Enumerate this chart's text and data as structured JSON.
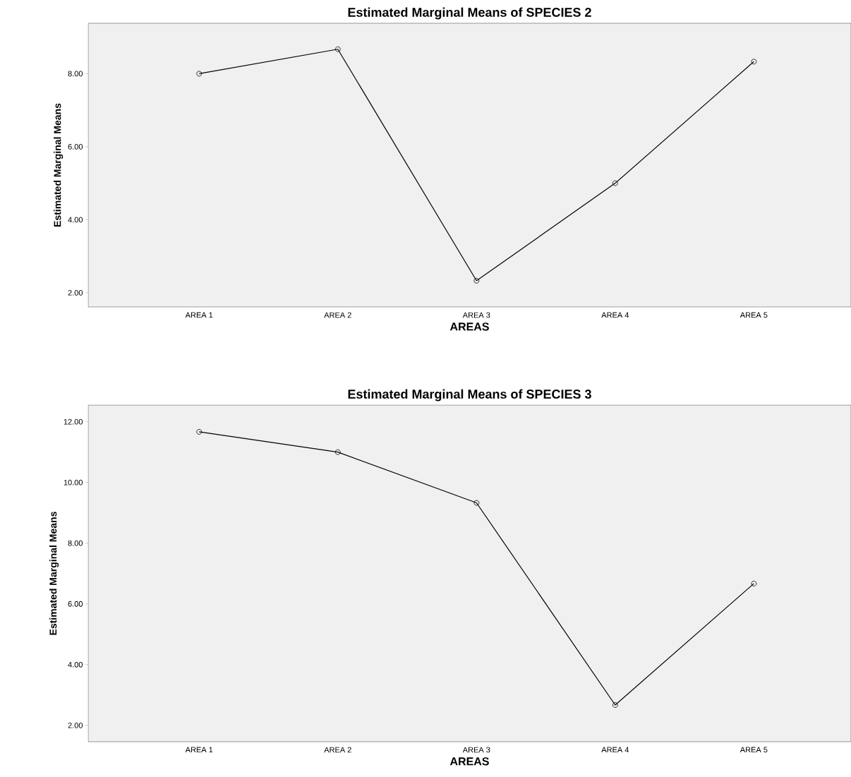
{
  "chart_data": [
    {
      "type": "line",
      "title": "Estimated Marginal Means of SPECIES 2",
      "xlabel": "AREAS",
      "ylabel": "Estimated Marginal Means",
      "categories": [
        "AREA 1",
        "AREA 2",
        "AREA 3",
        "AREA 4",
        "AREA 5"
      ],
      "values": [
        8.0,
        8.67,
        2.33,
        5.0,
        8.33
      ],
      "color": "#000000",
      "marker": "circle",
      "ylim": [
        1.61,
        9.38
      ],
      "yticks": [
        {
          "value": 2,
          "label": "2.00"
        },
        {
          "value": 4,
          "label": "4.00"
        },
        {
          "value": 6,
          "label": "6.00"
        },
        {
          "value": 8,
          "label": "8.00"
        }
      ]
    },
    {
      "type": "line",
      "title": "Estimated Marginal Means of SPECIES 3",
      "xlabel": "AREAS",
      "ylabel": "Estimated Marginal Means",
      "categories": [
        "AREA 1",
        "AREA 2",
        "AREA 3",
        "AREA 4",
        "AREA 5"
      ],
      "values": [
        11.67,
        11.0,
        9.33,
        2.67,
        6.67
      ],
      "color": "#000000",
      "marker": "circle",
      "ylim": [
        1.46,
        12.55
      ],
      "yticks": [
        {
          "value": 2,
          "label": "2.00"
        },
        {
          "value": 4,
          "label": "4.00"
        },
        {
          "value": 6,
          "label": "6.00"
        },
        {
          "value": 8,
          "label": "8.00"
        },
        {
          "value": 10,
          "label": "10.00"
        },
        {
          "value": 12,
          "label": "12.00"
        }
      ]
    }
  ]
}
